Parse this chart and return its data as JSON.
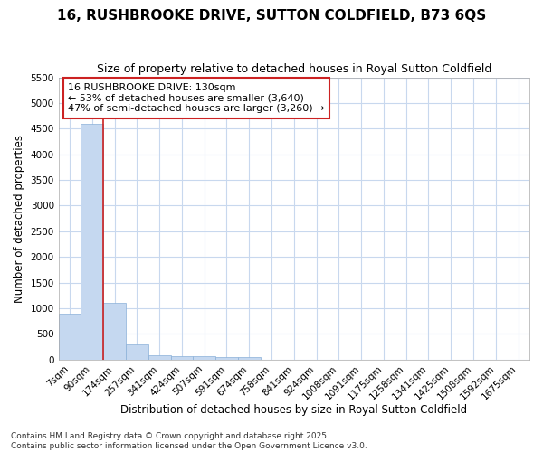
{
  "title": "16, RUSHBROOKE DRIVE, SUTTON COLDFIELD, B73 6QS",
  "subtitle": "Size of property relative to detached houses in Royal Sutton Coldfield",
  "xlabel": "Distribution of detached houses by size in Royal Sutton Coldfield",
  "ylabel": "Number of detached properties",
  "categories": [
    "7sqm",
    "90sqm",
    "174sqm",
    "257sqm",
    "341sqm",
    "424sqm",
    "507sqm",
    "591sqm",
    "674sqm",
    "758sqm",
    "841sqm",
    "924sqm",
    "1008sqm",
    "1091sqm",
    "1175sqm",
    "1258sqm",
    "1341sqm",
    "1425sqm",
    "1508sqm",
    "1592sqm",
    "1675sqm"
  ],
  "values": [
    900,
    4600,
    1100,
    300,
    90,
    70,
    60,
    50,
    50,
    0,
    0,
    0,
    0,
    0,
    0,
    0,
    0,
    0,
    0,
    0,
    0
  ],
  "bar_color": "#c5d8f0",
  "bar_edge_color": "#8ab0d8",
  "vline_color": "#cc2222",
  "vline_pos": 1.5,
  "ylim": [
    0,
    5500
  ],
  "yticks": [
    0,
    500,
    1000,
    1500,
    2000,
    2500,
    3000,
    3500,
    4000,
    4500,
    5000,
    5500
  ],
  "annotation_line1": "16 RUSHBROOKE DRIVE: 130sqm",
  "annotation_line2": "← 53% of detached houses are smaller (3,640)",
  "annotation_line3": "47% of semi-detached houses are larger (3,260) →",
  "annotation_box_color": "#cc2222",
  "bg_color": "#ffffff",
  "grid_color": "#c8d8ee",
  "footer": "Contains HM Land Registry data © Crown copyright and database right 2025.\nContains public sector information licensed under the Open Government Licence v3.0.",
  "title_fontsize": 11,
  "subtitle_fontsize": 9,
  "xlabel_fontsize": 8.5,
  "ylabel_fontsize": 8.5,
  "tick_fontsize": 7.5,
  "annotation_fontsize": 8,
  "footer_fontsize": 6.5
}
